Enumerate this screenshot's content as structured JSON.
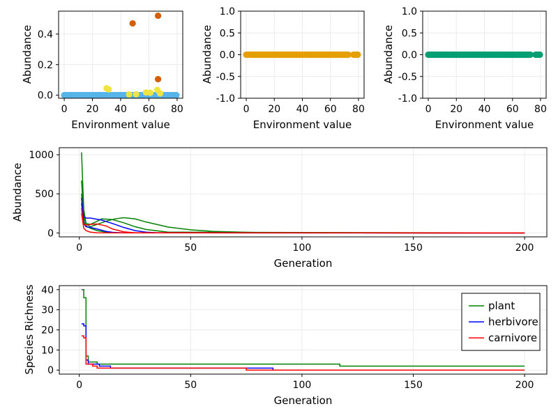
{
  "colors": {
    "orange": "#d55e00",
    "yellow": "#f0e442",
    "skyblue": "#56b4e9",
    "gold": "#e69f00",
    "teal": "#009e73",
    "plant": "#008000",
    "herbivore": "#0000ff",
    "carnivore": "#ff0000"
  },
  "chart_data": [
    {
      "id": "scatter1",
      "type": "scatter",
      "xlabel": "Environment value",
      "ylabel": "Abundance",
      "xlim": [
        -4,
        84
      ],
      "ylim": [
        -0.02,
        0.55
      ],
      "xticks": [
        0,
        20,
        40,
        60,
        80
      ],
      "yticks": [
        0.0,
        0.2,
        0.4
      ],
      "ytick_labels": [
        "0.0",
        "0.2",
        "0.4"
      ],
      "grid": true,
      "series": [
        {
          "color": "skyblue",
          "baseline_from": 0,
          "baseline_to": 80,
          "x": [],
          "y": []
        },
        {
          "color": "yellow",
          "x": [
            30,
            31.5,
            46,
            51,
            58,
            61,
            66,
            68
          ],
          "y": [
            0.045,
            0.038,
            0.005,
            0.006,
            0.018,
            0.016,
            0.035,
            0.012
          ]
        },
        {
          "color": "orange",
          "x": [
            48.5,
            66.5,
            66.5
          ],
          "y": [
            0.47,
            0.52,
            0.105
          ]
        }
      ]
    },
    {
      "id": "scatter2",
      "type": "scatter",
      "xlabel": "Environment value",
      "ylabel": "Abundance",
      "xlim": [
        -4,
        84
      ],
      "ylim": [
        -1.0,
        1.0
      ],
      "xticks": [
        0,
        20,
        40,
        60,
        80
      ],
      "yticks": [
        -1.0,
        -0.5,
        0.0,
        0.5,
        1.0
      ],
      "ytick_labels": [
        "-1.0",
        "-0.5",
        "0.0",
        "0.5",
        "1.0"
      ],
      "grid": true,
      "series": [
        {
          "color": "gold",
          "baseline_from": 0,
          "baseline_to": 80,
          "gap": [
            73,
            76
          ],
          "x": [],
          "y": []
        }
      ]
    },
    {
      "id": "scatter3",
      "type": "scatter",
      "xlabel": "Environment value",
      "ylabel": "Abundance",
      "xlim": [
        -4,
        84
      ],
      "ylim": [
        -1.0,
        1.0
      ],
      "xticks": [
        0,
        20,
        40,
        60,
        80
      ],
      "yticks": [
        -1.0,
        -0.5,
        0.0,
        0.5,
        1.0
      ],
      "ytick_labels": [
        "-1.0",
        "-0.5",
        "0.0",
        "0.5",
        "1.0"
      ],
      "grid": true,
      "series": [
        {
          "color": "teal",
          "baseline_from": 0,
          "baseline_to": 80,
          "gap": [
            73,
            76
          ],
          "x": [],
          "y": []
        }
      ]
    },
    {
      "id": "abundance",
      "type": "line",
      "xlabel": "Generation",
      "ylabel": "Abundance",
      "xlim": [
        -9,
        210
      ],
      "ylim": [
        -50,
        1090
      ],
      "xticks": [
        0,
        50,
        100,
        150,
        200
      ],
      "yticks": [
        0,
        500,
        1000
      ],
      "ytick_labels": [
        "0",
        "500",
        "1000"
      ],
      "grid": true,
      "series": [
        {
          "color": "plant",
          "x": [
            1,
            1.5,
            2,
            3,
            5,
            8,
            12,
            16,
            20,
            25,
            30,
            40,
            50,
            60,
            80,
            100,
            200
          ],
          "y": [
            1030,
            650,
            300,
            120,
            80,
            110,
            150,
            180,
            195,
            180,
            140,
            75,
            40,
            20,
            5,
            1,
            0
          ]
        },
        {
          "color": "plant",
          "x": [
            1,
            2,
            3,
            5,
            8,
            10,
            15,
            20,
            25,
            30,
            40,
            200
          ],
          "y": [
            670,
            200,
            120,
            110,
            150,
            180,
            170,
            130,
            80,
            45,
            10,
            0
          ]
        },
        {
          "color": "plant",
          "x": [
            1,
            2,
            3,
            5,
            8,
            12,
            15,
            200
          ],
          "y": [
            500,
            150,
            90,
            60,
            30,
            10,
            2,
            0
          ]
        },
        {
          "color": "herbivore",
          "x": [
            1,
            1.5,
            2,
            3,
            5,
            10,
            15,
            20,
            25,
            30,
            35,
            200
          ],
          "y": [
            450,
            280,
            210,
            190,
            190,
            165,
            120,
            70,
            30,
            10,
            2,
            0
          ]
        },
        {
          "color": "herbivore",
          "x": [
            1,
            2,
            3,
            5,
            8,
            12,
            15,
            20,
            200
          ],
          "y": [
            380,
            120,
            80,
            70,
            50,
            20,
            8,
            1,
            0
          ]
        },
        {
          "color": "carnivore",
          "x": [
            1,
            1.5,
            2,
            3,
            5,
            8,
            12,
            15,
            20,
            25,
            200
          ],
          "y": [
            320,
            180,
            110,
            100,
            110,
            115,
            90,
            50,
            15,
            2,
            0
          ]
        },
        {
          "color": "carnivore",
          "x": [
            1,
            2,
            3,
            5,
            8,
            200
          ],
          "y": [
            250,
            60,
            30,
            10,
            2,
            0
          ]
        }
      ]
    },
    {
      "id": "richness",
      "type": "line",
      "xlabel": "Generation",
      "ylabel": "Species Richness",
      "xlim": [
        -9,
        210
      ],
      "ylim": [
        -2,
        42
      ],
      "xticks": [
        0,
        50,
        100,
        150,
        200
      ],
      "yticks": [
        0,
        10,
        20,
        30,
        40
      ],
      "ytick_labels": [
        "0",
        "10",
        "20",
        "30",
        "40"
      ],
      "grid": true,
      "legend_position": "top-right",
      "series": [
        {
          "name": "plant",
          "color": "plant",
          "step": true,
          "x": [
            1,
            2,
            3,
            4,
            6,
            8,
            116,
            117,
            200
          ],
          "y": [
            40,
            36,
            7,
            4,
            4,
            3,
            3,
            2,
            2
          ]
        },
        {
          "name": "herbivore",
          "color": "herbivore",
          "step": true,
          "x": [
            1,
            2,
            3,
            4,
            6,
            9,
            14,
            86,
            87,
            200
          ],
          "y": [
            23,
            22,
            5,
            3,
            3,
            2,
            1,
            1,
            0,
            0
          ]
        },
        {
          "name": "carnivore",
          "color": "carnivore",
          "step": true,
          "x": [
            1,
            2,
            3,
            4,
            6,
            8,
            74,
            75,
            200
          ],
          "y": [
            17,
            16,
            3,
            3,
            2,
            1,
            1,
            0,
            0
          ]
        }
      ]
    }
  ]
}
